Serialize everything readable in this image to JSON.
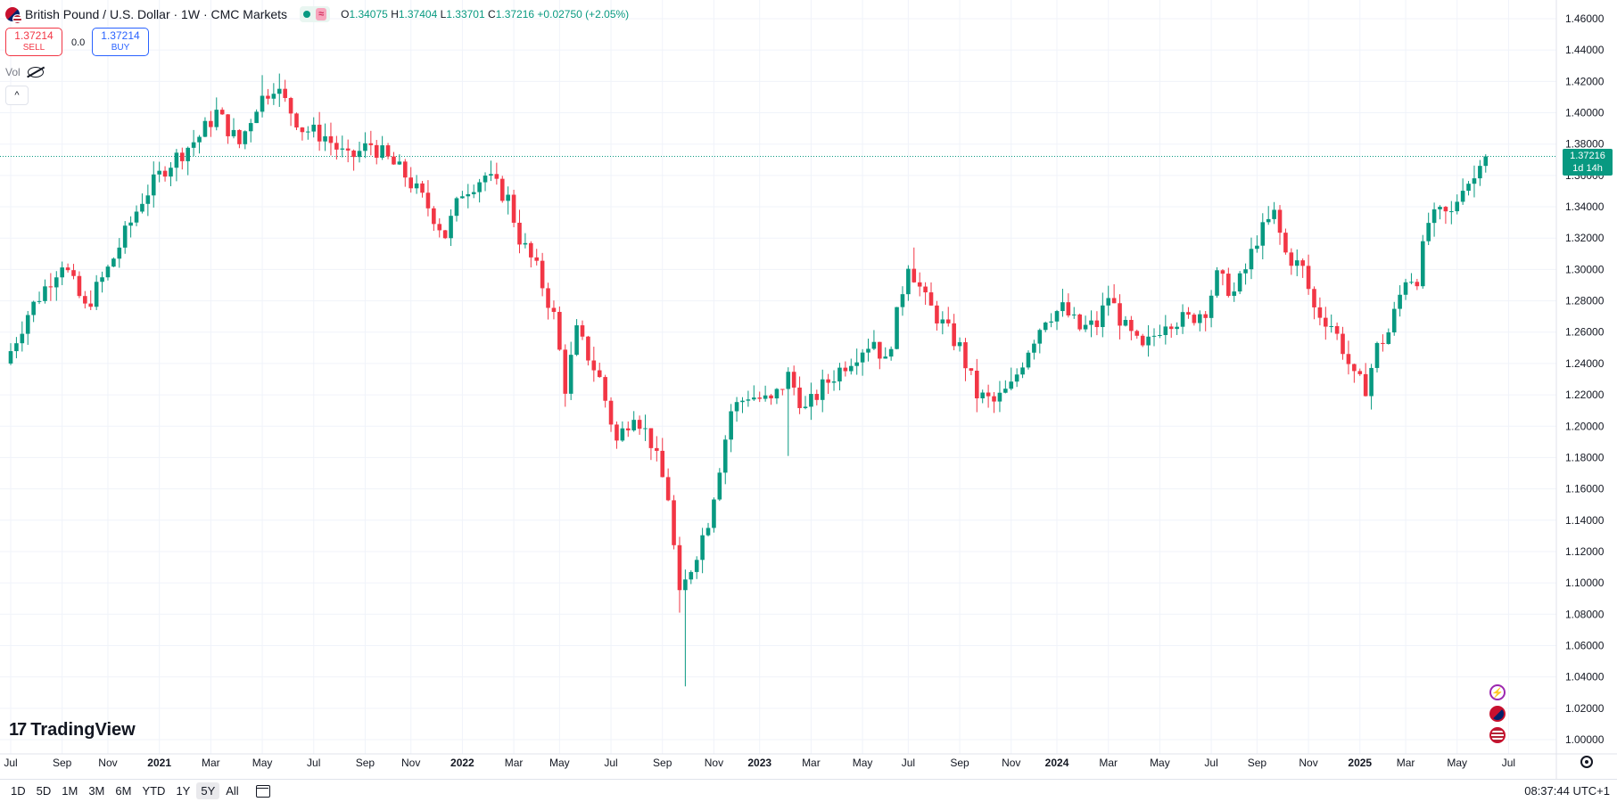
{
  "header": {
    "title": "British Pound / U.S. Dollar · 1W · CMC Markets",
    "status_badge": "≈",
    "ohlc": {
      "o_label": "O",
      "o": "1.34075",
      "h_label": "H",
      "h": "1.37404",
      "l_label": "L",
      "l": "1.33701",
      "c_label": "C",
      "c": "1.37216",
      "change": "+0.02750 (+2.05%)"
    }
  },
  "trade": {
    "sell_price": "1.37214",
    "sell_label": "SELL",
    "spread": "0.0",
    "buy_price": "1.37214",
    "buy_label": "BUY"
  },
  "volume": {
    "label": "Vol"
  },
  "logo": {
    "text": "TradingView"
  },
  "price_label": {
    "price": "1.37216",
    "countdown": "1d 14h"
  },
  "bottom_bar": {
    "ranges": [
      "1D",
      "5D",
      "1M",
      "3M",
      "6M",
      "YTD",
      "1Y",
      "5Y",
      "All"
    ],
    "active_range": "5Y",
    "clock": "08:37:44 UTC+1"
  },
  "colors": {
    "up": "#089981",
    "down": "#f23645",
    "grid": "#f0f3fa",
    "accent": "#2962ff"
  },
  "icons": [
    "flag-gbpusd-icon",
    "visibility-off-icon",
    "chevron-up-icon",
    "calendar-icon",
    "settings-gear-icon",
    "lightning-icon",
    "uk-flag-icon",
    "us-flag-icon"
  ],
  "chart_data": {
    "type": "candlestick",
    "symbol": "GBPUSD",
    "interval": "1W",
    "y_ticks": [
      "1.46000",
      "1.44000",
      "1.42000",
      "1.40000",
      "1.38000",
      "1.36000",
      "1.34000",
      "1.32000",
      "1.30000",
      "1.28000",
      "1.26000",
      "1.24000",
      "1.22000",
      "1.20000",
      "1.18000",
      "1.16000",
      "1.14000",
      "1.12000",
      "1.10000",
      "1.08000",
      "1.06000",
      "1.04000",
      "1.02000",
      "1.00000"
    ],
    "ylim": [
      1.0,
      1.46
    ],
    "last_price": 1.37216,
    "x_ticks": [
      {
        "label": "Jul",
        "week": 0
      },
      {
        "label": "Sep",
        "week": 9
      },
      {
        "label": "Nov",
        "week": 17
      },
      {
        "label": "2021",
        "week": 26,
        "bold": true
      },
      {
        "label": "Mar",
        "week": 35
      },
      {
        "label": "May",
        "week": 44
      },
      {
        "label": "Jul",
        "week": 53
      },
      {
        "label": "Sep",
        "week": 62
      },
      {
        "label": "Nov",
        "week": 70
      },
      {
        "label": "2022",
        "week": 79,
        "bold": true
      },
      {
        "label": "Mar",
        "week": 88
      },
      {
        "label": "May",
        "week": 96
      },
      {
        "label": "Jul",
        "week": 105
      },
      {
        "label": "Sep",
        "week": 114
      },
      {
        "label": "Nov",
        "week": 123
      },
      {
        "label": "2023",
        "week": 131,
        "bold": true
      },
      {
        "label": "Mar",
        "week": 140
      },
      {
        "label": "May",
        "week": 149
      },
      {
        "label": "Jul",
        "week": 157
      },
      {
        "label": "Sep",
        "week": 166
      },
      {
        "label": "Nov",
        "week": 175
      },
      {
        "label": "2024",
        "week": 183,
        "bold": true
      },
      {
        "label": "Mar",
        "week": 192
      },
      {
        "label": "May",
        "week": 201
      },
      {
        "label": "Jul",
        "week": 210
      },
      {
        "label": "Sep",
        "week": 218
      },
      {
        "label": "Nov",
        "week": 227
      },
      {
        "label": "2025",
        "week": 236,
        "bold": true
      },
      {
        "label": "Mar",
        "week": 244
      },
      {
        "label": "May",
        "week": 253
      },
      {
        "label": "Jul",
        "week": 262
      }
    ],
    "keypoints": [
      [
        0,
        1.24
      ],
      [
        4,
        1.272
      ],
      [
        10,
        1.305
      ],
      [
        12,
        1.29
      ],
      [
        14,
        1.275
      ],
      [
        18,
        1.3
      ],
      [
        24,
        1.345
      ],
      [
        28,
        1.365
      ],
      [
        34,
        1.385
      ],
      [
        37,
        1.4
      ],
      [
        41,
        1.38
      ],
      [
        44,
        1.405
      ],
      [
        47,
        1.418
      ],
      [
        52,
        1.39
      ],
      [
        56,
        1.385
      ],
      [
        60,
        1.37
      ],
      [
        64,
        1.38
      ],
      [
        70,
        1.36
      ],
      [
        74,
        1.34
      ],
      [
        77,
        1.322
      ],
      [
        80,
        1.35
      ],
      [
        84,
        1.36
      ],
      [
        88,
        1.345
      ],
      [
        90,
        1.32
      ],
      [
        93,
        1.3
      ],
      [
        96,
        1.27
      ],
      [
        98,
        1.225
      ],
      [
        100,
        1.26
      ],
      [
        104,
        1.23
      ],
      [
        107,
        1.19
      ],
      [
        110,
        1.21
      ],
      [
        113,
        1.19
      ],
      [
        116,
        1.155
      ],
      [
        118,
        1.09
      ],
      [
        121,
        1.12
      ],
      [
        123,
        1.14
      ],
      [
        127,
        1.21
      ],
      [
        130,
        1.22
      ],
      [
        134,
        1.215
      ],
      [
        137,
        1.232
      ],
      [
        140,
        1.21
      ],
      [
        143,
        1.225
      ],
      [
        147,
        1.24
      ],
      [
        150,
        1.25
      ],
      [
        152,
        1.255
      ],
      [
        154,
        1.24
      ],
      [
        156,
        1.27
      ],
      [
        158,
        1.305
      ],
      [
        161,
        1.28
      ],
      [
        164,
        1.265
      ],
      [
        167,
        1.25
      ],
      [
        170,
        1.22
      ],
      [
        173,
        1.215
      ],
      [
        176,
        1.225
      ],
      [
        179,
        1.25
      ],
      [
        182,
        1.27
      ],
      [
        185,
        1.275
      ],
      [
        188,
        1.262
      ],
      [
        191,
        1.265
      ],
      [
        193,
        1.283
      ],
      [
        196,
        1.262
      ],
      [
        199,
        1.248
      ],
      [
        203,
        1.268
      ],
      [
        207,
        1.268
      ],
      [
        210,
        1.275
      ],
      [
        212,
        1.295
      ],
      [
        215,
        1.285
      ],
      [
        217,
        1.3
      ],
      [
        219,
        1.32
      ],
      [
        222,
        1.335
      ],
      [
        224,
        1.31
      ],
      [
        227,
        1.3
      ],
      [
        229,
        1.275
      ],
      [
        232,
        1.265
      ],
      [
        234,
        1.25
      ],
      [
        236,
        1.23
      ],
      [
        238,
        1.225
      ],
      [
        240,
        1.25
      ],
      [
        242,
        1.26
      ],
      [
        245,
        1.295
      ],
      [
        247,
        1.295
      ],
      [
        249,
        1.33
      ],
      [
        251,
        1.335
      ],
      [
        253,
        1.335
      ],
      [
        255,
        1.355
      ],
      [
        257,
        1.358
      ],
      [
        258,
        1.372
      ]
    ],
    "forced_lows": [
      [
        118,
        1.034
      ],
      [
        136,
        1.181
      ],
      [
        117,
        1.081
      ]
    ],
    "forced_highs": [
      [
        44,
        1.424
      ],
      [
        47,
        1.425
      ],
      [
        158,
        1.314
      ],
      [
        221,
        1.343
      ]
    ]
  }
}
